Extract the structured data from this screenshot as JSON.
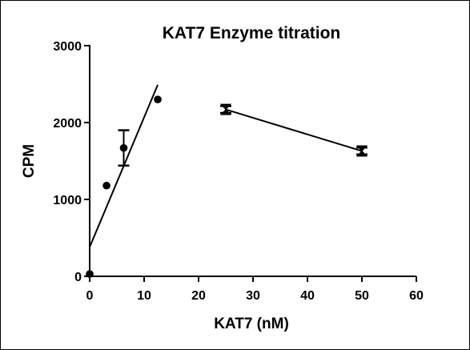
{
  "chart_data": {
    "type": "scatter",
    "title": "KAT7 Enzyme titration",
    "xlabel": "KAT7 (nM)",
    "ylabel": "CPM",
    "xlim": [
      0,
      60
    ],
    "ylim": [
      0,
      3000
    ],
    "xticks": [
      0,
      10,
      20,
      30,
      40,
      50,
      60
    ],
    "yticks": [
      0,
      1000,
      2000,
      3000
    ],
    "grid": false,
    "series": [
      {
        "marker": "circle",
        "points": [
          {
            "x": 0,
            "y": 30,
            "err": 0
          },
          {
            "x": 3.1,
            "y": 1180,
            "err": 0
          },
          {
            "x": 6.25,
            "y": 1670,
            "err": 230
          },
          {
            "x": 12.5,
            "y": 2300,
            "err": 0
          }
        ],
        "fit_line": {
          "x": [
            0,
            12.5
          ],
          "y": [
            380,
            2490
          ]
        }
      },
      {
        "marker": "hourglass",
        "points": [
          {
            "x": 25,
            "y": 2170,
            "err": 45
          },
          {
            "x": 50,
            "y": 1630,
            "err": 45
          }
        ],
        "connect": true
      }
    ],
    "colors": {
      "axis": "#000000",
      "marker": "#000000",
      "line": "#000000",
      "background": "#ffffff"
    }
  }
}
